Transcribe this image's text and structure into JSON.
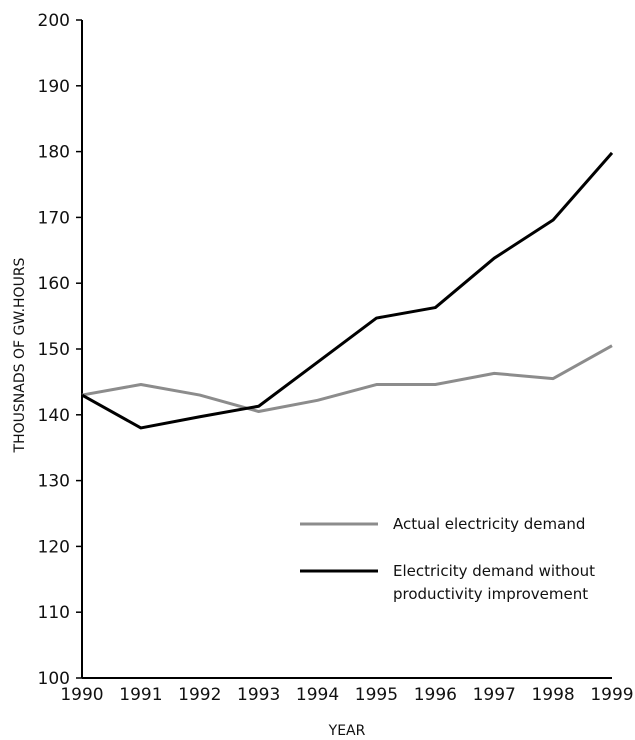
{
  "chart_data": {
    "type": "line",
    "title": "",
    "xlabel": "YEAR",
    "ylabel": "THOUSNADS OF GW.HOURS",
    "x": [
      "1990",
      "1991",
      "1992",
      "1993",
      "1994",
      "1995",
      "1996",
      "1997",
      "1998",
      "1999"
    ],
    "xlim": [
      1990,
      1999
    ],
    "ylim": [
      100,
      200
    ],
    "yticks": [
      "100",
      "110",
      "120",
      "130",
      "140",
      "150",
      "160",
      "170",
      "180",
      "190",
      "200"
    ],
    "grid": false,
    "legend": "lower-right",
    "series": [
      {
        "name": "Actual electricity demand",
        "color": "#8c8c8c",
        "values": [
          143,
          144.6,
          143,
          140.5,
          142.2,
          144.6,
          144.6,
          146.3,
          145.5,
          150.5
        ]
      },
      {
        "name": "Electricity demand without",
        "name_line2": "productivity improvement",
        "color": "#000000",
        "values": [
          143,
          138,
          139.7,
          141.3,
          148,
          154.7,
          156.3,
          163.8,
          169.6,
          179.8
        ]
      }
    ]
  }
}
